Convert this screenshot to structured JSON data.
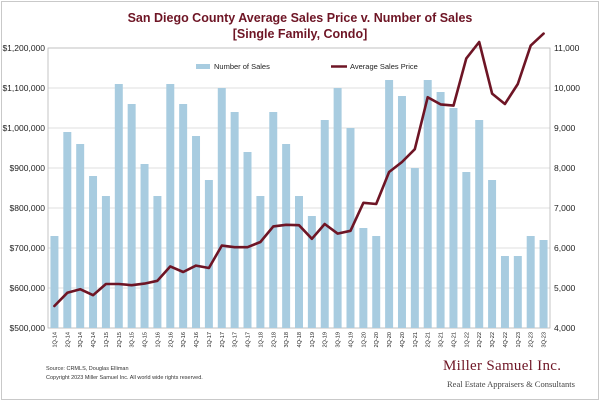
{
  "chart_data": {
    "type": "bar+line",
    "title": "San Diego County Average Sales Price v. Number of Sales",
    "subtitle": "[Single Family, Condo]",
    "categories": [
      "1Q-14",
      "2Q-14",
      "3Q-14",
      "4Q-14",
      "1Q-15",
      "2Q-15",
      "3Q-15",
      "4Q-15",
      "1Q-16",
      "2Q-16",
      "3Q-16",
      "4Q-16",
      "1Q-17",
      "2Q-17",
      "3Q-17",
      "4Q-17",
      "1Q-18",
      "2Q-18",
      "3Q-18",
      "4Q-18",
      "1Q-19",
      "2Q-19",
      "3Q-19",
      "4Q-19",
      "1Q-20",
      "2Q-20",
      "3Q-20",
      "4Q-20",
      "1Q-21",
      "2Q-21",
      "3Q-21",
      "4Q-21",
      "1Q-22",
      "2Q-22",
      "3Q-22",
      "4Q-22",
      "1Q-23",
      "2Q-23",
      "3Q-23"
    ],
    "series": [
      {
        "name": "Number of Sales",
        "type": "bar",
        "axis": "right",
        "color": "#a8cce0",
        "values": [
          6300,
          8900,
          8600,
          7800,
          7300,
          10100,
          9600,
          8100,
          7300,
          10100,
          9600,
          8800,
          7700,
          10000,
          9400,
          8400,
          7300,
          9400,
          8600,
          7300,
          6800,
          9200,
          10000,
          9000,
          6500,
          6300,
          10200,
          9800,
          8000,
          10200,
          9900,
          9500,
          7900,
          9200,
          7700,
          5800,
          5800,
          6300,
          6200
        ]
      },
      {
        "name": "Average Sales Price",
        "type": "line",
        "axis": "left",
        "color": "#6e1525",
        "values": [
          555000,
          588000,
          597000,
          582000,
          610000,
          610000,
          607000,
          611000,
          618000,
          654000,
          640000,
          656000,
          650000,
          706000,
          702000,
          702000,
          715000,
          754000,
          758000,
          757000,
          723000,
          760000,
          736000,
          743000,
          813000,
          810000,
          890000,
          915000,
          947000,
          1077000,
          1059000,
          1056000,
          1174000,
          1215000,
          1086000,
          1060000,
          1110000,
          1206000,
          1236000
        ]
      }
    ],
    "y_left": {
      "label": "",
      "min": 500000,
      "max": 1200000,
      "ticks": [
        "$500,000",
        "$600,000",
        "$700,000",
        "$800,000",
        "$900,000",
        "$1,000,000",
        "$1,100,000",
        "$1,200,000"
      ]
    },
    "y_right": {
      "label": "",
      "min": 4000,
      "max": 11000,
      "ticks": [
        "4,000",
        "5,000",
        "6,000",
        "7,000",
        "8,000",
        "9,000",
        "10,000",
        "11,000"
      ]
    },
    "grid": true,
    "legend_position": "top"
  },
  "footer": {
    "source": "Source: CRMLS, Douglas Elliman",
    "copyright": "Copyright 2023 Miller Samuel Inc.  All world wide rights reserved."
  },
  "logo": {
    "name": "Miller Samuel Inc.",
    "tagline": "Real Estate Appraisers & Consultants"
  }
}
